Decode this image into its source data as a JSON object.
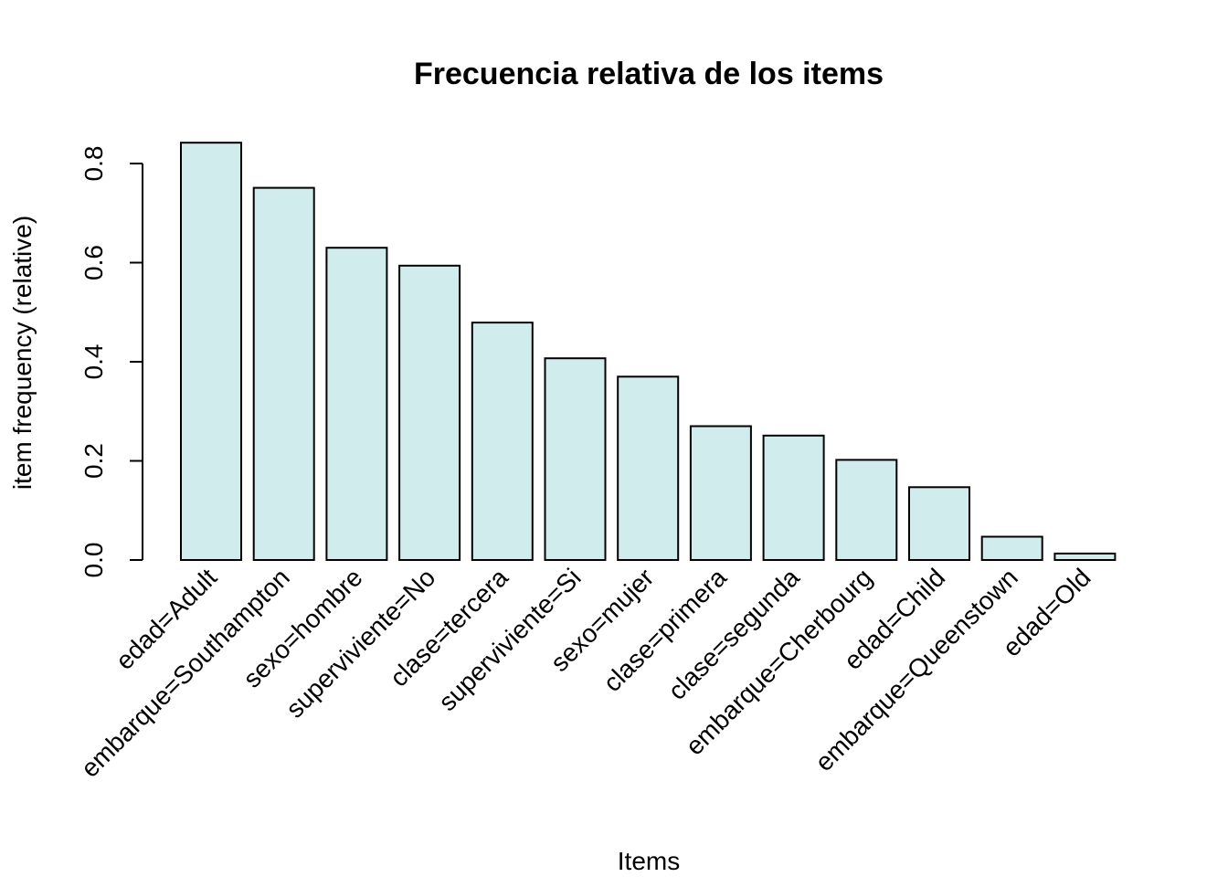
{
  "chart_data": {
    "type": "bar",
    "title": "Frecuencia relativa de los items",
    "xlabel": "Items",
    "ylabel": "item frequency (relative)",
    "ylim": [
      0,
      0.85
    ],
    "yticks": [
      0.0,
      0.2,
      0.4,
      0.6,
      0.8
    ],
    "ytick_labels": [
      "0.0",
      "0.2",
      "0.4",
      "0.6",
      "0.8"
    ],
    "grid": false,
    "bar_color": "#d1ecec",
    "categories": [
      "edad=Adult",
      "embarque=Southampton",
      "sexo=hombre",
      "superviviente=No",
      "clase=tercera",
      "superviviente=Si",
      "sexo=mujer",
      "clase=primera",
      "clase=segunda",
      "embarque=Cherbourg",
      "edad=Child",
      "embarque=Queenstown",
      "edad=Old"
    ],
    "values": [
      0.842,
      0.751,
      0.63,
      0.594,
      0.479,
      0.407,
      0.37,
      0.27,
      0.251,
      0.202,
      0.147,
      0.047,
      0.013
    ]
  }
}
